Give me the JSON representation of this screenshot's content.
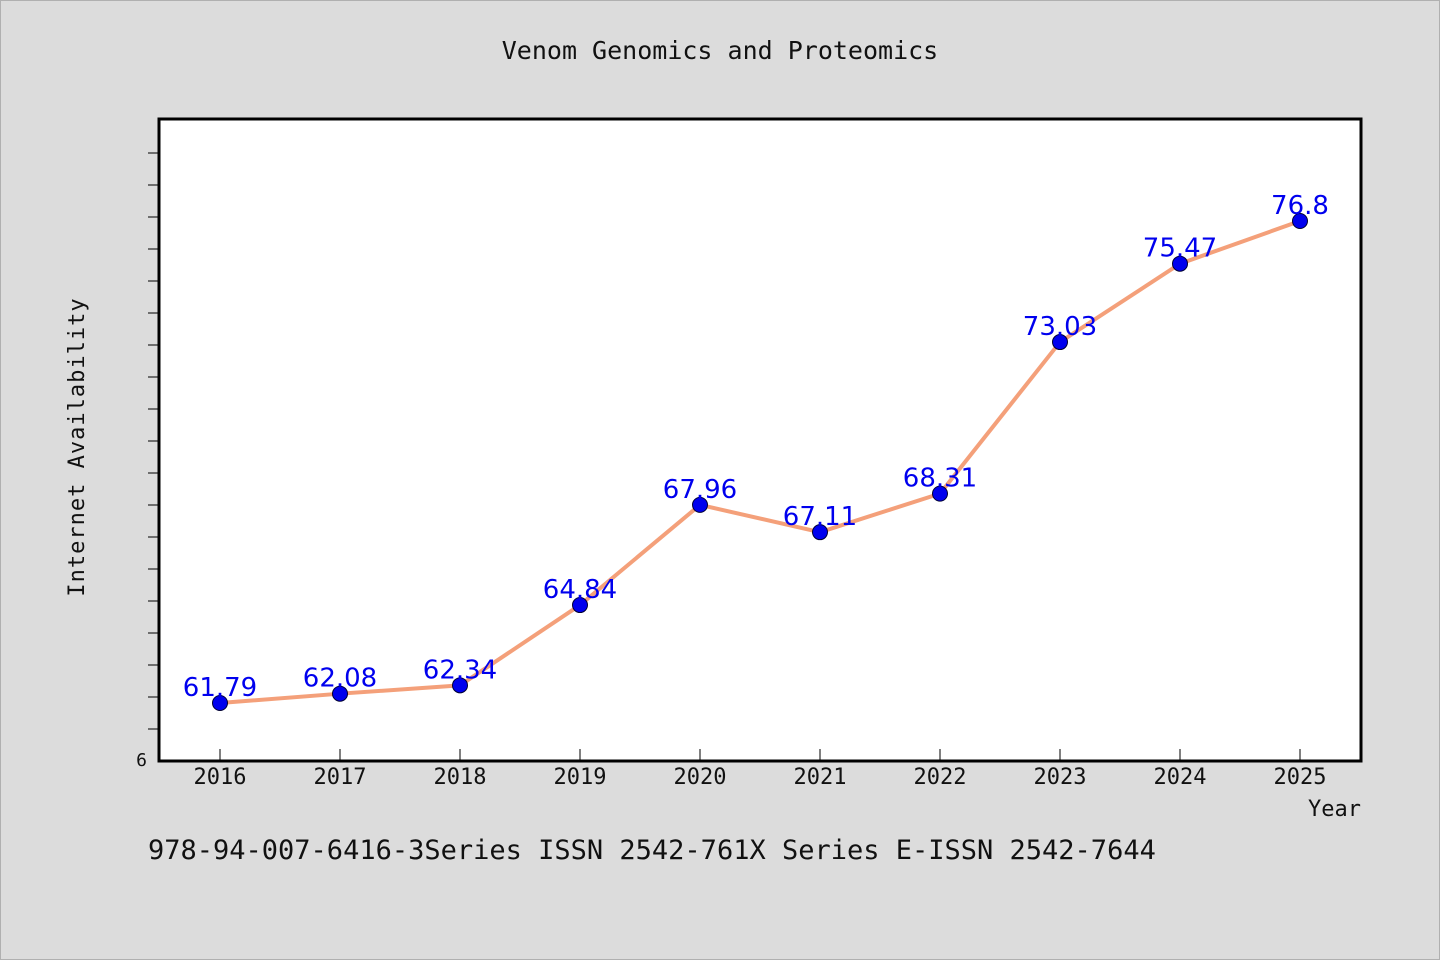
{
  "chart_data": {
    "type": "line",
    "title": "Venom Genomics and Proteomics",
    "xlabel": "Year",
    "ylabel": "Internet Availability",
    "categories": [
      "2016",
      "2017",
      "2018",
      "2019",
      "2020",
      "2021",
      "2022",
      "2023",
      "2024",
      "2025"
    ],
    "series": [
      {
        "values": [
          61.79,
          62.08,
          62.34,
          64.84,
          67.96,
          67.11,
          68.31,
          73.03,
          75.47,
          76.8
        ],
        "labels": [
          "61.79",
          "62.08",
          "62.34",
          "64.84",
          "67.96",
          "67.11",
          "68.31",
          "73.03",
          "75.47",
          "76.8"
        ],
        "line_color": "#f4a07a",
        "marker_color": "#0000ee",
        "label_color": "#0000ee"
      }
    ],
    "ylim": [
      61.5,
      77.8
    ],
    "y_tick_labels": [
      "6"
    ],
    "grid": false,
    "legend": "none"
  },
  "footer": {
    "text": "978-94-007-6416-3Series ISSN 2542-761X Series E-ISSN 2542-7644"
  },
  "colors": {
    "background": "#dcdcdc",
    "plot_background": "#ffffff",
    "axis": "#000000"
  }
}
